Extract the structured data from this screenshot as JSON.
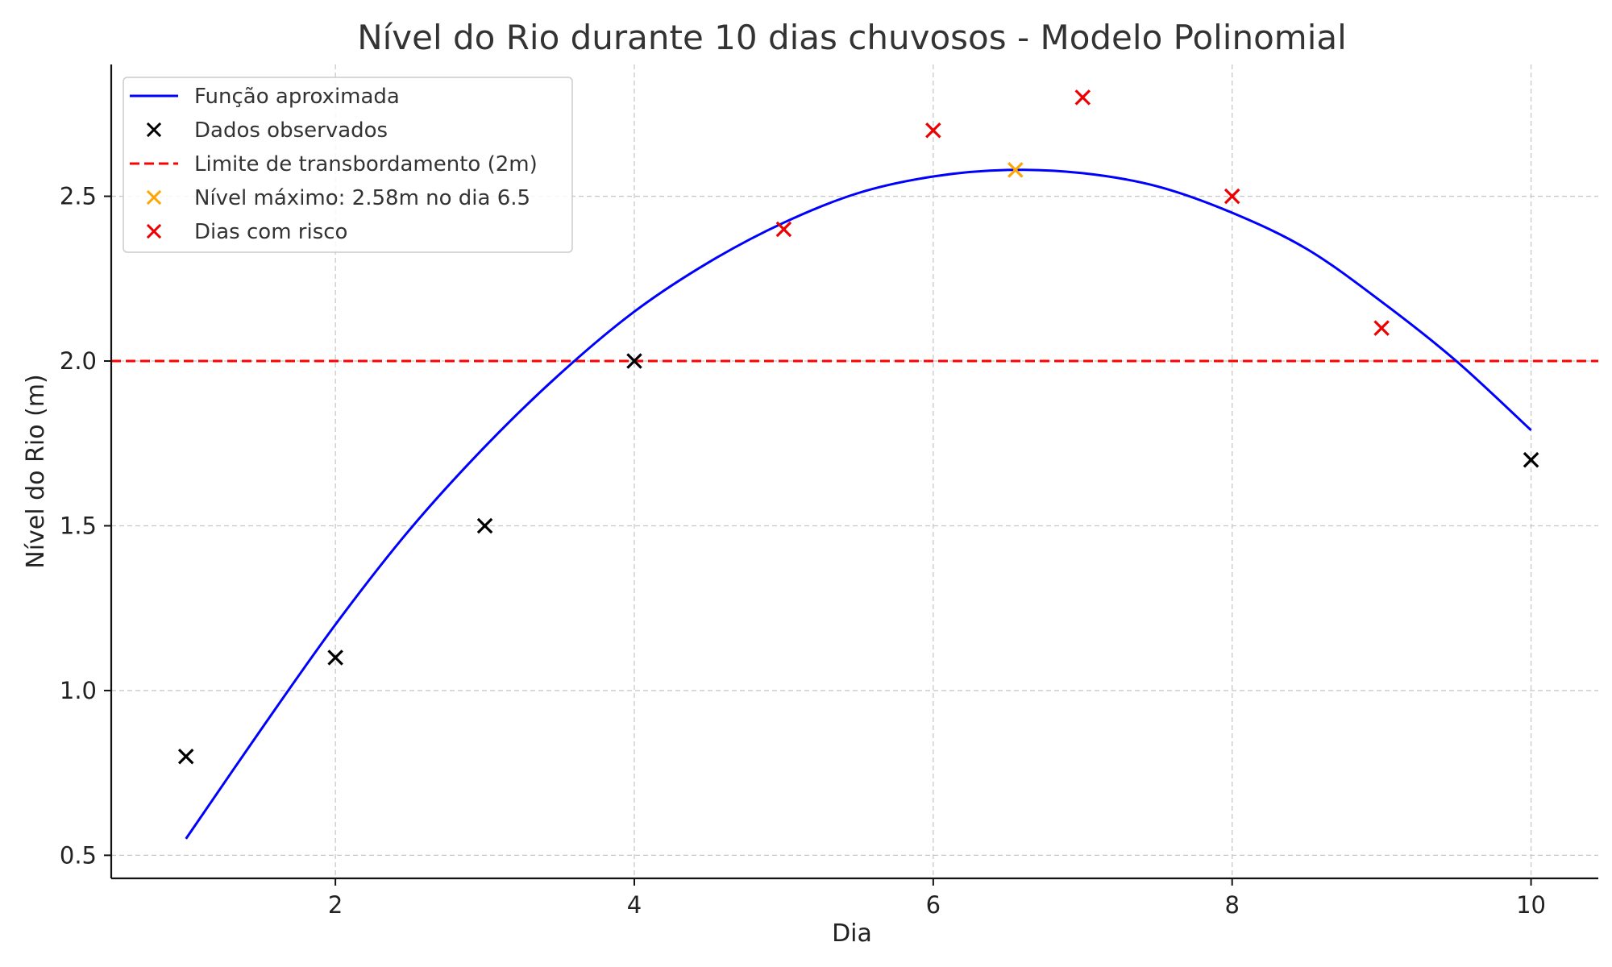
{
  "chart_data": {
    "type": "line",
    "title": "Nível do Rio durante 10 dias chuvosos - Modelo Polinomial",
    "xlabel": "Dia",
    "ylabel": "Nível do Rio (m)",
    "xlim": [
      0.5,
      10.45
    ],
    "ylim": [
      0.43,
      2.9
    ],
    "xticks": [
      2,
      4,
      6,
      8,
      10
    ],
    "xtick_labels": [
      "2",
      "4",
      "6",
      "8",
      "10"
    ],
    "yticks": [
      0.5,
      1.0,
      1.5,
      2.0,
      2.5
    ],
    "ytick_labels": [
      "0.5",
      "1.0",
      "1.5",
      "2.0",
      "2.5"
    ],
    "grid": true,
    "legend_position": "top-left",
    "series": [
      {
        "name": "Função aproximada",
        "kind": "line",
        "color": "#0000ff",
        "x": [
          1.0,
          1.5,
          2.0,
          2.5,
          3.0,
          3.5,
          4.0,
          4.5,
          5.0,
          5.5,
          6.0,
          6.5,
          7.0,
          7.5,
          8.0,
          8.5,
          9.0,
          9.5,
          10.0
        ],
        "y": [
          0.55,
          0.88,
          1.2,
          1.49,
          1.74,
          1.96,
          2.15,
          2.3,
          2.42,
          2.51,
          2.56,
          2.58,
          2.57,
          2.53,
          2.45,
          2.34,
          2.18,
          2.0,
          1.79
        ]
      },
      {
        "name": "Dados observados",
        "kind": "scatter",
        "color": "#000000",
        "x": [
          1,
          2,
          3,
          4,
          10
        ],
        "y": [
          0.8,
          1.1,
          1.5,
          2.0,
          1.7
        ]
      },
      {
        "name": "Limite de transbordamento (2m)",
        "kind": "hline",
        "color": "#ff0000",
        "y": 2.0
      },
      {
        "name": "Nível máximo: 2.58m no dia 6.5",
        "kind": "scatter",
        "color": "#ffa500",
        "x": [
          6.55
        ],
        "y": [
          2.58
        ]
      },
      {
        "name": "Dias com risco",
        "kind": "scatter",
        "color": "#ee0000",
        "x": [
          5,
          6,
          7,
          8,
          9
        ],
        "y": [
          2.4,
          2.7,
          2.8,
          2.5,
          2.1
        ]
      }
    ]
  }
}
